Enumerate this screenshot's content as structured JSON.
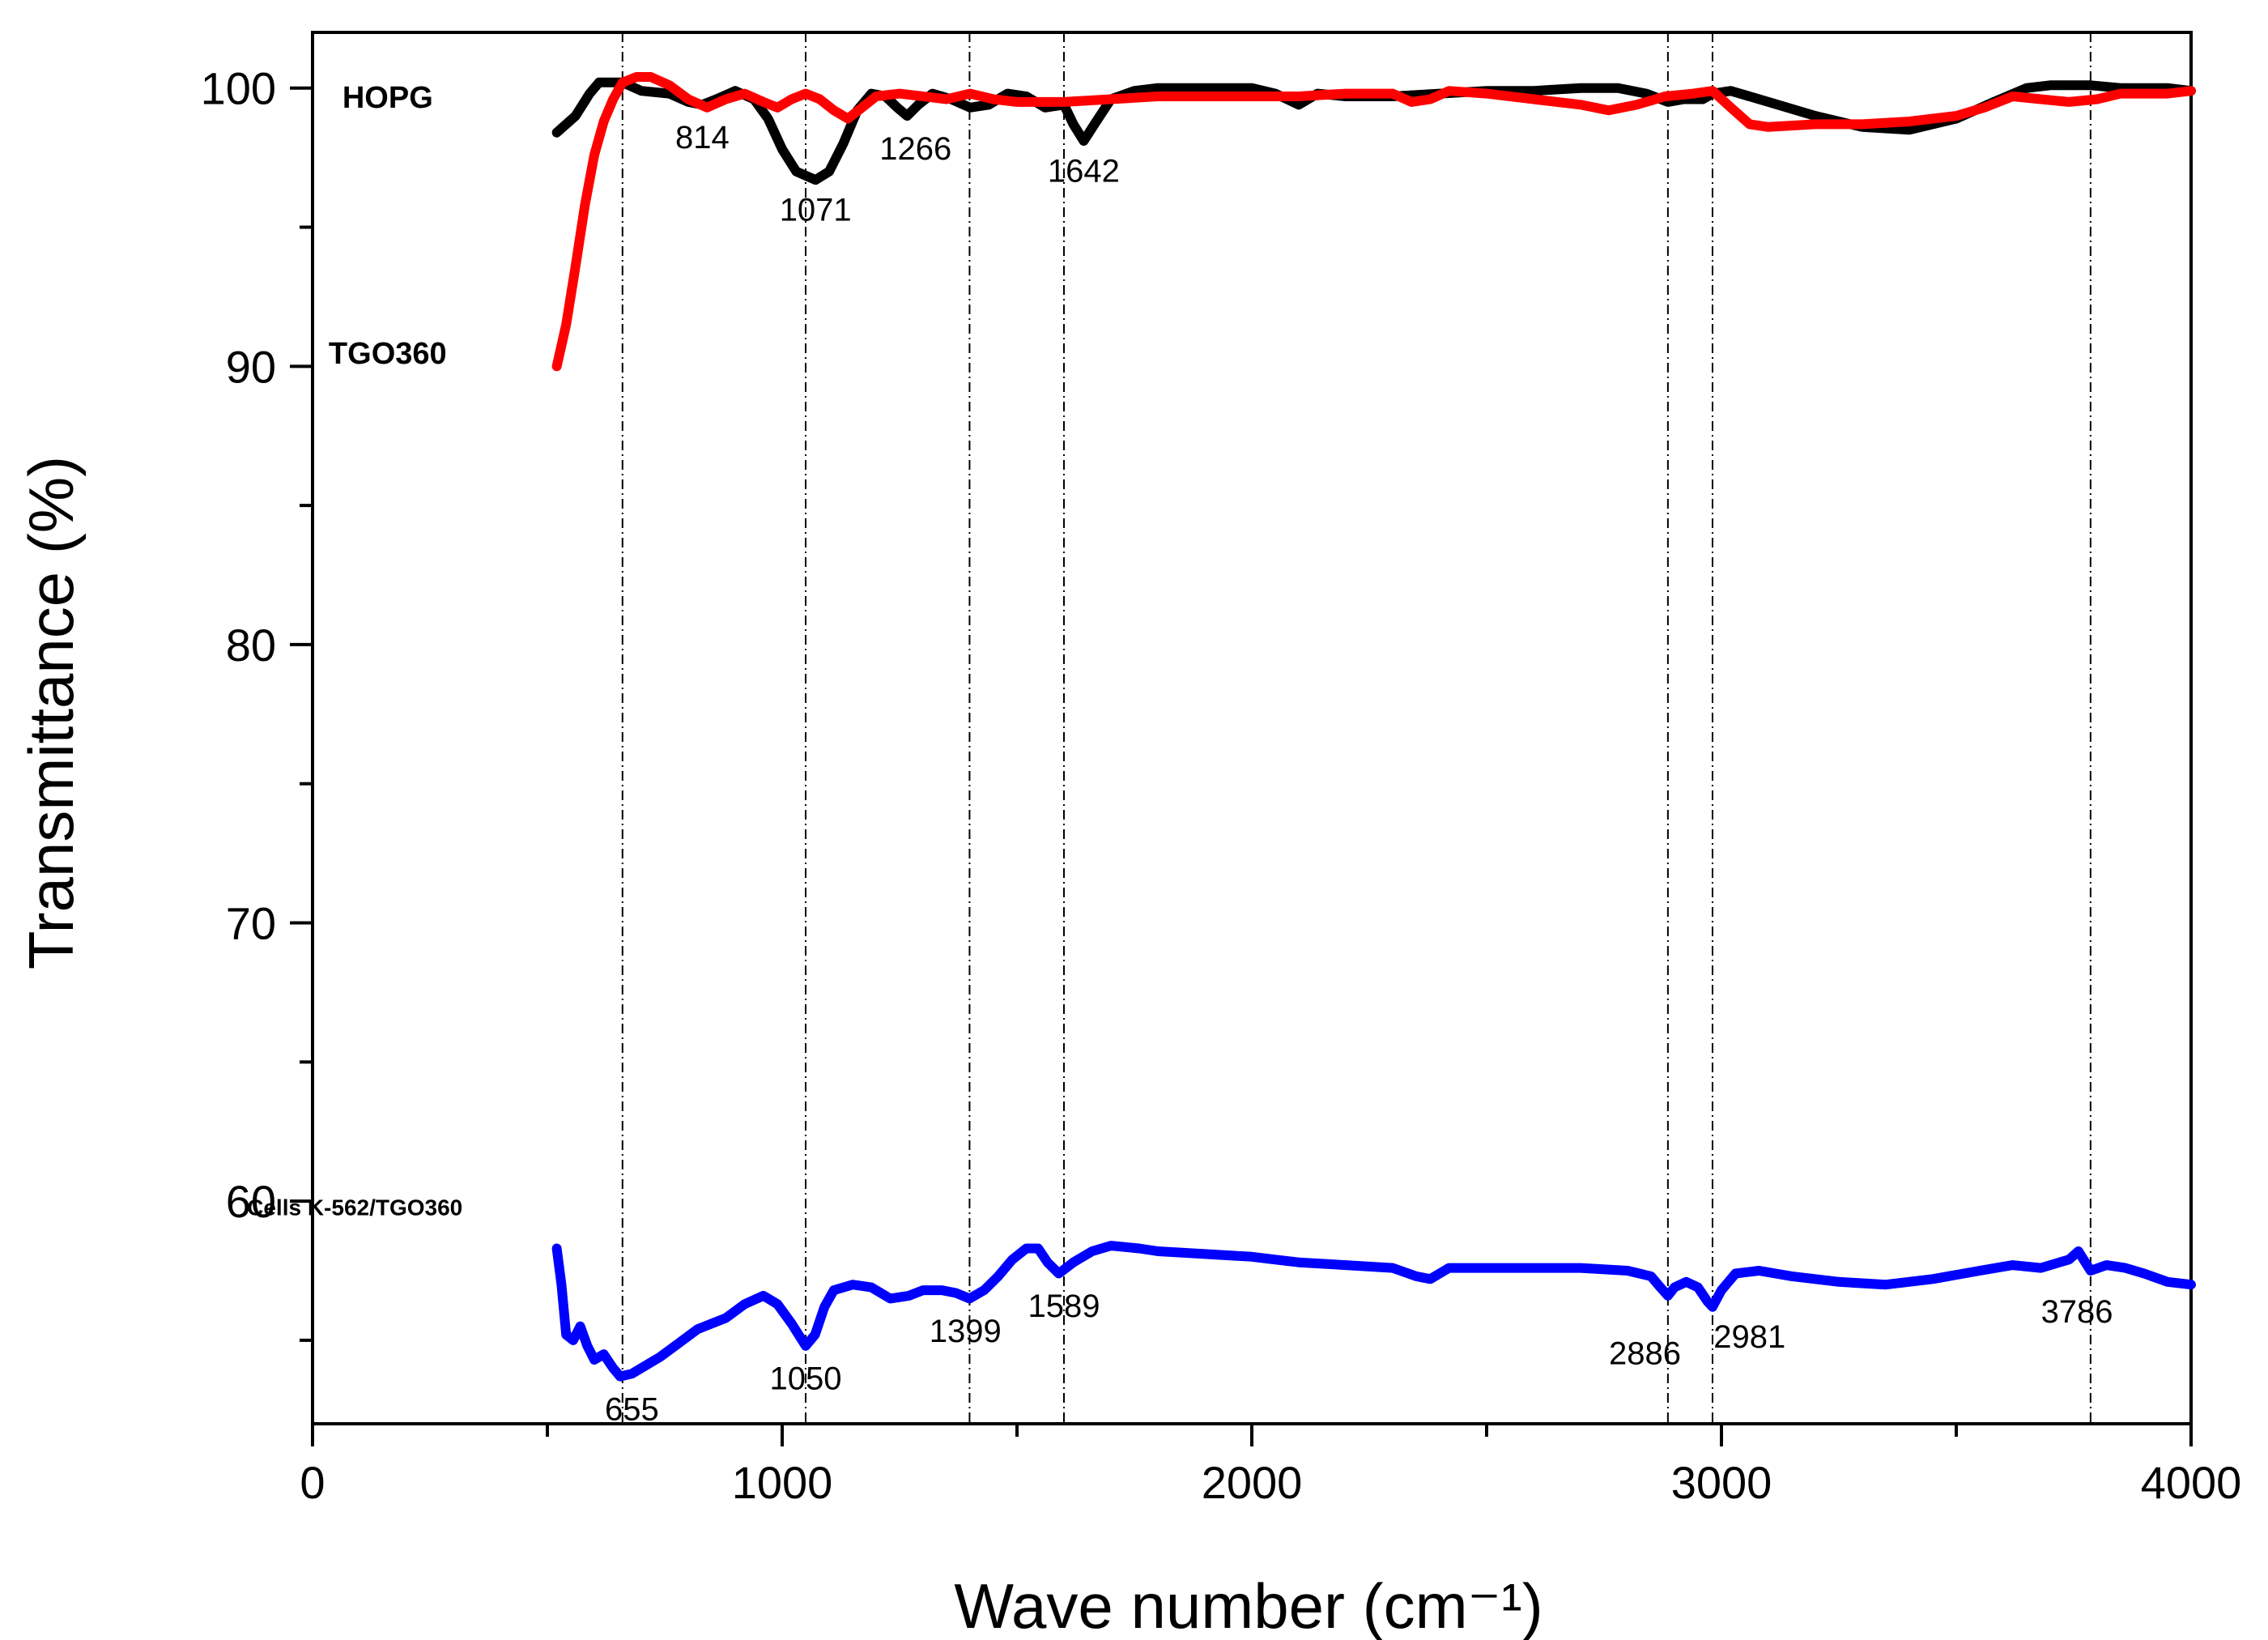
{
  "chart_data": {
    "type": "line",
    "title": "",
    "xlabel": "Wave number (cm⁻¹)",
    "ylabel": "Transmittance (%)",
    "xlim": [
      0,
      4000
    ],
    "ylim": [
      52,
      102
    ],
    "x_ticks": [
      0,
      1000,
      2000,
      3000,
      4000
    ],
    "y_ticks": [
      60,
      70,
      80,
      90,
      100
    ],
    "x_minor_step": 500,
    "y_minor_step": 5,
    "grid": false,
    "reference_lines_x": [
      660,
      1050,
      1399,
      1600,
      2886,
      2981,
      3786
    ],
    "series": [
      {
        "name": "HOPG",
        "color": "#000000",
        "points": [
          [
            520,
            98.4
          ],
          [
            560,
            99.0
          ],
          [
            590,
            99.8
          ],
          [
            610,
            100.2
          ],
          [
            660,
            100.2
          ],
          [
            700,
            99.9
          ],
          [
            760,
            99.8
          ],
          [
            800,
            99.5
          ],
          [
            830,
            99.4
          ],
          [
            860,
            99.6
          ],
          [
            900,
            99.9
          ],
          [
            940,
            99.6
          ],
          [
            970,
            98.9
          ],
          [
            1000,
            97.8
          ],
          [
            1030,
            97.0
          ],
          [
            1071,
            96.7
          ],
          [
            1100,
            97.0
          ],
          [
            1130,
            98.0
          ],
          [
            1160,
            99.2
          ],
          [
            1190,
            99.8
          ],
          [
            1220,
            99.7
          ],
          [
            1245,
            99.3
          ],
          [
            1266,
            99.0
          ],
          [
            1290,
            99.4
          ],
          [
            1320,
            99.8
          ],
          [
            1360,
            99.6
          ],
          [
            1400,
            99.3
          ],
          [
            1440,
            99.4
          ],
          [
            1480,
            99.8
          ],
          [
            1520,
            99.7
          ],
          [
            1560,
            99.3
          ],
          [
            1600,
            99.4
          ],
          [
            1620,
            98.7
          ],
          [
            1642,
            98.1
          ],
          [
            1665,
            98.7
          ],
          [
            1700,
            99.6
          ],
          [
            1750,
            99.9
          ],
          [
            1800,
            100.0
          ],
          [
            1900,
            100.0
          ],
          [
            2000,
            100.0
          ],
          [
            2050,
            99.8
          ],
          [
            2100,
            99.4
          ],
          [
            2140,
            99.8
          ],
          [
            2200,
            99.7
          ],
          [
            2300,
            99.7
          ],
          [
            2400,
            99.8
          ],
          [
            2500,
            99.9
          ],
          [
            2600,
            99.9
          ],
          [
            2700,
            100.0
          ],
          [
            2780,
            100.0
          ],
          [
            2840,
            99.8
          ],
          [
            2886,
            99.5
          ],
          [
            2920,
            99.6
          ],
          [
            2960,
            99.6
          ],
          [
            2981,
            99.8
          ],
          [
            3020,
            99.9
          ],
          [
            3100,
            99.5
          ],
          [
            3200,
            99.0
          ],
          [
            3300,
            98.6
          ],
          [
            3400,
            98.5
          ],
          [
            3500,
            98.9
          ],
          [
            3580,
            99.5
          ],
          [
            3650,
            100.0
          ],
          [
            3700,
            100.1
          ],
          [
            3786,
            100.1
          ],
          [
            3850,
            100.0
          ],
          [
            3950,
            100.0
          ],
          [
            4000,
            99.9
          ]
        ]
      },
      {
        "name": "TGO360",
        "color": "#ff0000",
        "points": [
          [
            520,
            90.0
          ],
          [
            540,
            91.5
          ],
          [
            560,
            93.6
          ],
          [
            580,
            95.8
          ],
          [
            600,
            97.6
          ],
          [
            620,
            98.8
          ],
          [
            640,
            99.6
          ],
          [
            660,
            100.2
          ],
          [
            690,
            100.4
          ],
          [
            720,
            100.4
          ],
          [
            760,
            100.1
          ],
          [
            800,
            99.6
          ],
          [
            840,
            99.3
          ],
          [
            880,
            99.6
          ],
          [
            920,
            99.8
          ],
          [
            960,
            99.5
          ],
          [
            990,
            99.3
          ],
          [
            1020,
            99.6
          ],
          [
            1050,
            99.8
          ],
          [
            1080,
            99.6
          ],
          [
            1110,
            99.2
          ],
          [
            1140,
            98.9
          ],
          [
            1170,
            99.3
          ],
          [
            1200,
            99.7
          ],
          [
            1250,
            99.8
          ],
          [
            1300,
            99.7
          ],
          [
            1350,
            99.6
          ],
          [
            1400,
            99.8
          ],
          [
            1450,
            99.6
          ],
          [
            1500,
            99.5
          ],
          [
            1600,
            99.5
          ],
          [
            1700,
            99.6
          ],
          [
            1800,
            99.7
          ],
          [
            1900,
            99.7
          ],
          [
            2000,
            99.7
          ],
          [
            2100,
            99.7
          ],
          [
            2200,
            99.8
          ],
          [
            2300,
            99.8
          ],
          [
            2340,
            99.5
          ],
          [
            2380,
            99.6
          ],
          [
            2420,
            99.9
          ],
          [
            2500,
            99.8
          ],
          [
            2600,
            99.6
          ],
          [
            2700,
            99.4
          ],
          [
            2760,
            99.2
          ],
          [
            2820,
            99.4
          ],
          [
            2880,
            99.7
          ],
          [
            2940,
            99.8
          ],
          [
            2981,
            99.9
          ],
          [
            3020,
            99.3
          ],
          [
            3060,
            98.7
          ],
          [
            3100,
            98.6
          ],
          [
            3200,
            98.7
          ],
          [
            3300,
            98.7
          ],
          [
            3400,
            98.8
          ],
          [
            3500,
            99.0
          ],
          [
            3560,
            99.3
          ],
          [
            3620,
            99.7
          ],
          [
            3680,
            99.6
          ],
          [
            3740,
            99.5
          ],
          [
            3800,
            99.6
          ],
          [
            3850,
            99.8
          ],
          [
            3900,
            99.8
          ],
          [
            3950,
            99.8
          ],
          [
            4000,
            99.9
          ]
        ]
      },
      {
        "name": "Cells K-562/TGO360",
        "color": "#0000ff",
        "points": [
          [
            520,
            58.3
          ],
          [
            530,
            57.0
          ],
          [
            540,
            55.2
          ],
          [
            555,
            55.0
          ],
          [
            570,
            55.5
          ],
          [
            585,
            54.8
          ],
          [
            600,
            54.3
          ],
          [
            620,
            54.5
          ],
          [
            640,
            54.0
          ],
          [
            655,
            53.7
          ],
          [
            680,
            53.8
          ],
          [
            700,
            54.0
          ],
          [
            740,
            54.4
          ],
          [
            780,
            54.9
          ],
          [
            820,
            55.4
          ],
          [
            880,
            55.8
          ],
          [
            920,
            56.3
          ],
          [
            960,
            56.6
          ],
          [
            990,
            56.3
          ],
          [
            1020,
            55.6
          ],
          [
            1050,
            54.8
          ],
          [
            1070,
            55.2
          ],
          [
            1090,
            56.2
          ],
          [
            1110,
            56.8
          ],
          [
            1150,
            57.0
          ],
          [
            1190,
            56.9
          ],
          [
            1230,
            56.5
          ],
          [
            1270,
            56.6
          ],
          [
            1300,
            56.8
          ],
          [
            1340,
            56.8
          ],
          [
            1370,
            56.7
          ],
          [
            1399,
            56.5
          ],
          [
            1430,
            56.8
          ],
          [
            1460,
            57.3
          ],
          [
            1490,
            57.9
          ],
          [
            1520,
            58.3
          ],
          [
            1545,
            58.3
          ],
          [
            1565,
            57.8
          ],
          [
            1589,
            57.4
          ],
          [
            1620,
            57.8
          ],
          [
            1660,
            58.2
          ],
          [
            1700,
            58.4
          ],
          [
            1760,
            58.3
          ],
          [
            1800,
            58.2
          ],
          [
            1900,
            58.1
          ],
          [
            2000,
            58.0
          ],
          [
            2050,
            57.9
          ],
          [
            2100,
            57.8
          ],
          [
            2200,
            57.7
          ],
          [
            2300,
            57.6
          ],
          [
            2350,
            57.3
          ],
          [
            2380,
            57.2
          ],
          [
            2420,
            57.6
          ],
          [
            2500,
            57.6
          ],
          [
            2600,
            57.6
          ],
          [
            2700,
            57.6
          ],
          [
            2800,
            57.5
          ],
          [
            2850,
            57.3
          ],
          [
            2870,
            56.9
          ],
          [
            2886,
            56.6
          ],
          [
            2900,
            56.9
          ],
          [
            2925,
            57.1
          ],
          [
            2950,
            56.9
          ],
          [
            2970,
            56.4
          ],
          [
            2981,
            56.2
          ],
          [
            3000,
            56.8
          ],
          [
            3030,
            57.4
          ],
          [
            3080,
            57.5
          ],
          [
            3150,
            57.3
          ],
          [
            3250,
            57.1
          ],
          [
            3350,
            57.0
          ],
          [
            3450,
            57.2
          ],
          [
            3550,
            57.5
          ],
          [
            3620,
            57.7
          ],
          [
            3680,
            57.6
          ],
          [
            3740,
            57.9
          ],
          [
            3760,
            58.2
          ],
          [
            3786,
            57.5
          ],
          [
            3820,
            57.7
          ],
          [
            3860,
            57.6
          ],
          [
            3900,
            57.4
          ],
          [
            3950,
            57.1
          ],
          [
            4000,
            57.0
          ]
        ]
      }
    ],
    "annotations": [
      {
        "text": "814",
        "x": 830,
        "y": 99.0
      },
      {
        "text": "1071",
        "x": 1071,
        "y": 96.4
      },
      {
        "text": "1266",
        "x": 1284,
        "y": 98.6
      },
      {
        "text": "1642",
        "x": 1642,
        "y": 97.8
      },
      {
        "text": "655",
        "x": 680,
        "y": 53.3
      },
      {
        "text": "1050",
        "x": 1050,
        "y": 54.4
      },
      {
        "text": "1399",
        "x": 1390,
        "y": 56.1
      },
      {
        "text": "1589",
        "x": 1600,
        "y": 57.0
      },
      {
        "text": "2886",
        "x": 2837,
        "y": 55.3
      },
      {
        "text": "2981",
        "x": 3060,
        "y": 55.9
      },
      {
        "text": "3786",
        "x": 3757,
        "y": 56.8
      }
    ],
    "series_labels": [
      {
        "text": "HOPG",
        "x": 160,
        "y": 99.7,
        "size": "large"
      },
      {
        "text": "TGO360",
        "x": 160,
        "y": 90.5,
        "size": "large"
      },
      {
        "text": "Cells K-562/TGO360",
        "x": 90,
        "y": 59.9,
        "size": "small"
      }
    ]
  }
}
